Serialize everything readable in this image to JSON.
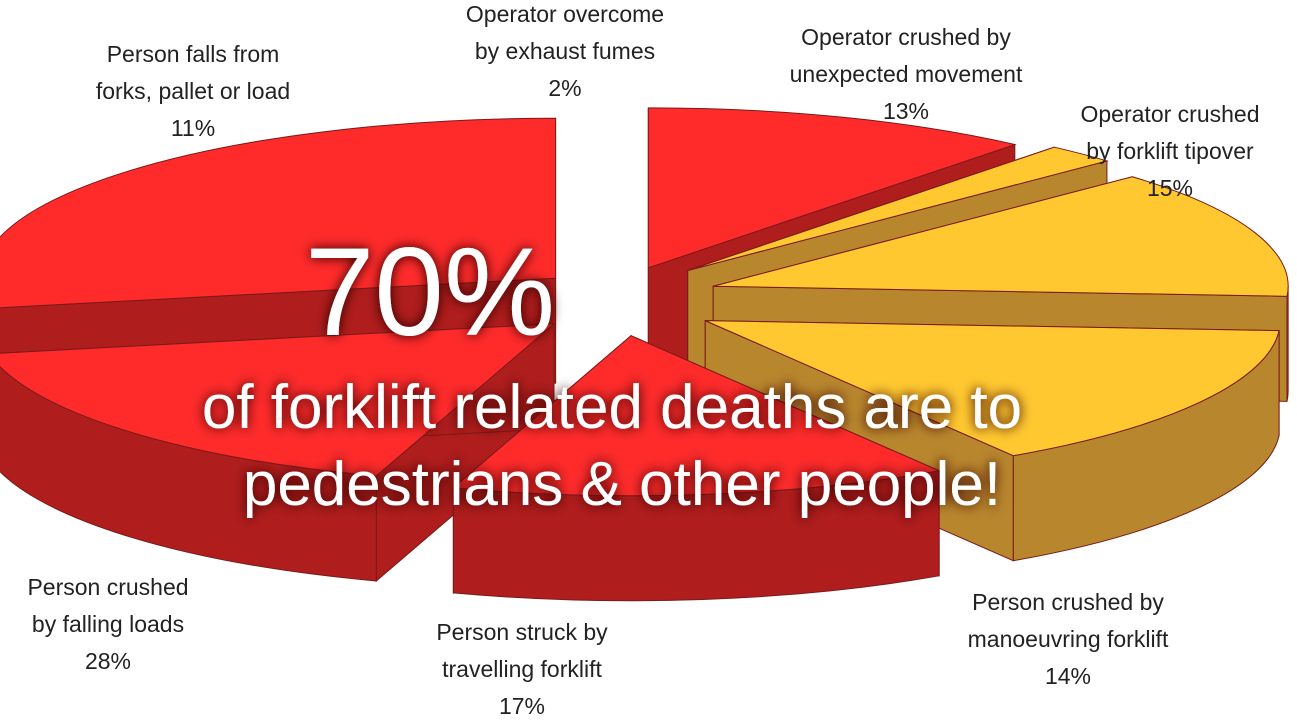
{
  "chart_data": {
    "type": "pie",
    "title": "",
    "slices": [
      {
        "label_lines": [
          "Person falls from",
          "forks, pallet or load"
        ],
        "value": 11,
        "value_label": "11%",
        "group": "pedestrian",
        "color": "#ff2b2b"
      },
      {
        "label_lines": [
          "Operator overcome",
          "by exhaust fumes"
        ],
        "value": 2,
        "value_label": "2%",
        "group": "operator",
        "color": "#ffc830"
      },
      {
        "label_lines": [
          "Operator crushed by",
          "unexpected movement"
        ],
        "value": 13,
        "value_label": "13%",
        "group": "operator",
        "color": "#ffc830"
      },
      {
        "label_lines": [
          "Operator crushed",
          "by forklift tipover"
        ],
        "value": 15,
        "value_label": "15%",
        "group": "operator",
        "color": "#ffc830"
      },
      {
        "label_lines": [
          "Person crushed by",
          "manoeuvring forklift"
        ],
        "value": 14,
        "value_label": "14%",
        "group": "pedestrian",
        "color": "#ff2b2b"
      },
      {
        "label_lines": [
          "Person struck by",
          "travelling forklift"
        ],
        "value": 17,
        "value_label": "17%",
        "group": "pedestrian",
        "color": "#ff2b2b"
      },
      {
        "label_lines": [
          "Person crushed",
          "by falling loads"
        ],
        "value": 28,
        "value_label": "28%",
        "group": "pedestrian",
        "color": "#ff2b2b"
      }
    ],
    "colors": {
      "pedestrian_top": "#ff2b2b",
      "pedestrian_side": "#b01d1d",
      "operator_top": "#ffc830",
      "operator_side": "#b8862d",
      "edge": "#7a1a1a"
    },
    "legend": "none",
    "style": "3d-exploded"
  },
  "overlay": {
    "headline": "70%",
    "line1": "of forklift related deaths are to",
    "line2": "pedestrians & other people!"
  }
}
